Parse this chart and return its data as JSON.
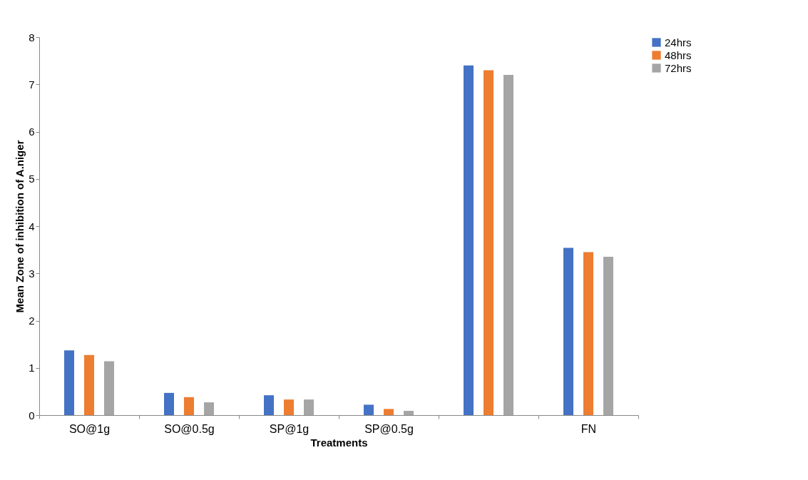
{
  "chart_data": {
    "type": "bar",
    "xlabel": "Treatments",
    "ylabel": "Mean Zone of inhibition of A.niger",
    "categories": [
      "SO@1g",
      "SO@0.5g",
      "SP@1g",
      "SP@0.5g",
      null,
      "FN"
    ],
    "series": [
      {
        "name": "24hrs",
        "color": "#4472c4",
        "values": [
          1.37,
          0.47,
          0.42,
          0.22,
          7.4,
          3.54
        ]
      },
      {
        "name": "48hrs",
        "color": "#ed7d31",
        "values": [
          1.27,
          0.38,
          0.33,
          0.13,
          7.3,
          3.45
        ]
      },
      {
        "name": "72hrs",
        "color": "#a5a5a5",
        "values": [
          1.14,
          0.27,
          0.33,
          0.09,
          7.2,
          3.35
        ]
      }
    ],
    "ylim": [
      0,
      8
    ],
    "yticks": [
      0,
      1,
      2,
      3,
      4,
      5,
      6,
      7,
      8
    ],
    "grid": false,
    "legend": "right"
  }
}
